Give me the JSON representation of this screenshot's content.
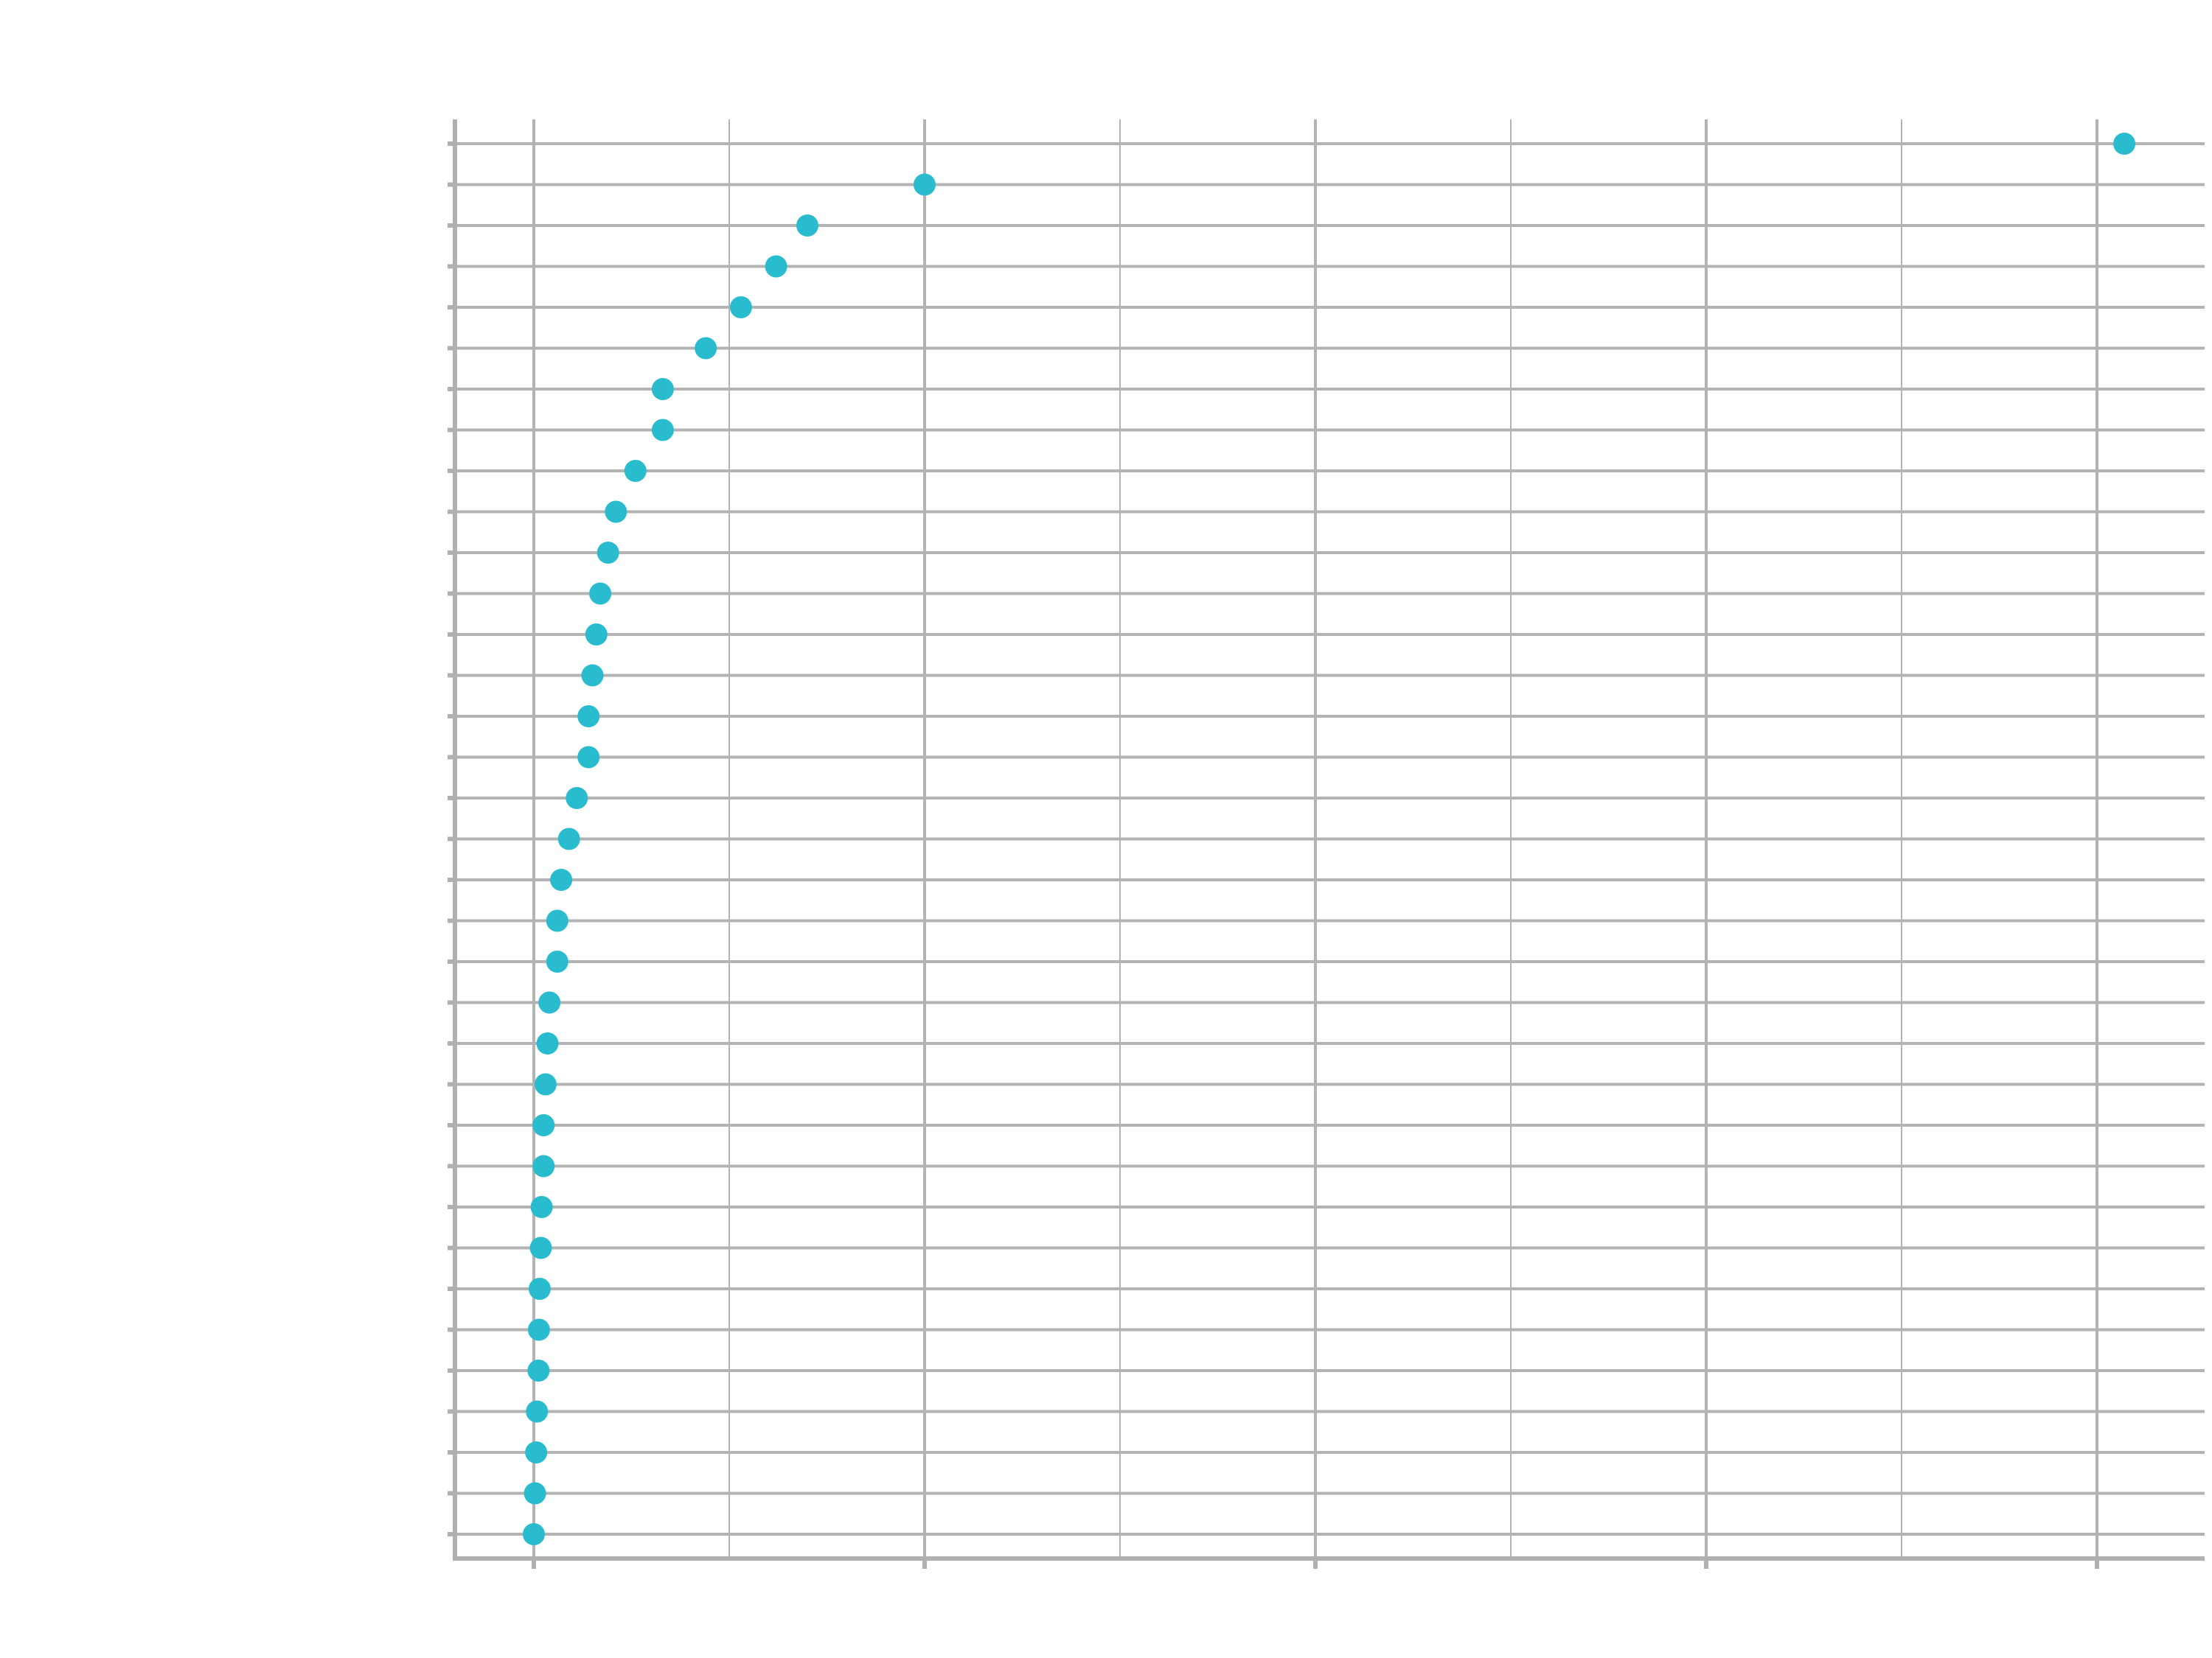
{
  "chart_data": {
    "type": "scatter",
    "title": "",
    "xlabel": "",
    "ylabel": "",
    "grid": true,
    "xlim": [
      -0.2,
      4.3
    ],
    "x_major_ticks": [
      0,
      1,
      2,
      3,
      4
    ],
    "x_minor_ticks": [
      0.5,
      1.5,
      2.5,
      3.5
    ],
    "categories": [
      "",
      "",
      "",
      "",
      "",
      "",
      "",
      "",
      "",
      "",
      "",
      "",
      "",
      "",
      "",
      "",
      "",
      "",
      "",
      "",
      "",
      "",
      "",
      "",
      "",
      "",
      "",
      "",
      "",
      "",
      "",
      "",
      "",
      "",
      ""
    ],
    "values": [
      4.07,
      1.0,
      0.7,
      0.62,
      0.53,
      0.44,
      0.33,
      0.33,
      0.26,
      0.21,
      0.19,
      0.17,
      0.16,
      0.15,
      0.14,
      0.14,
      0.11,
      0.09,
      0.07,
      0.06,
      0.06,
      0.04,
      0.035,
      0.03,
      0.025,
      0.025,
      0.02,
      0.018,
      0.015,
      0.013,
      0.012,
      0.008,
      0.006,
      0.003,
      0.0
    ],
    "colors": {
      "point": "#29bccf",
      "grid": "#b3b3b3",
      "axis": "#b0b0b0"
    }
  }
}
